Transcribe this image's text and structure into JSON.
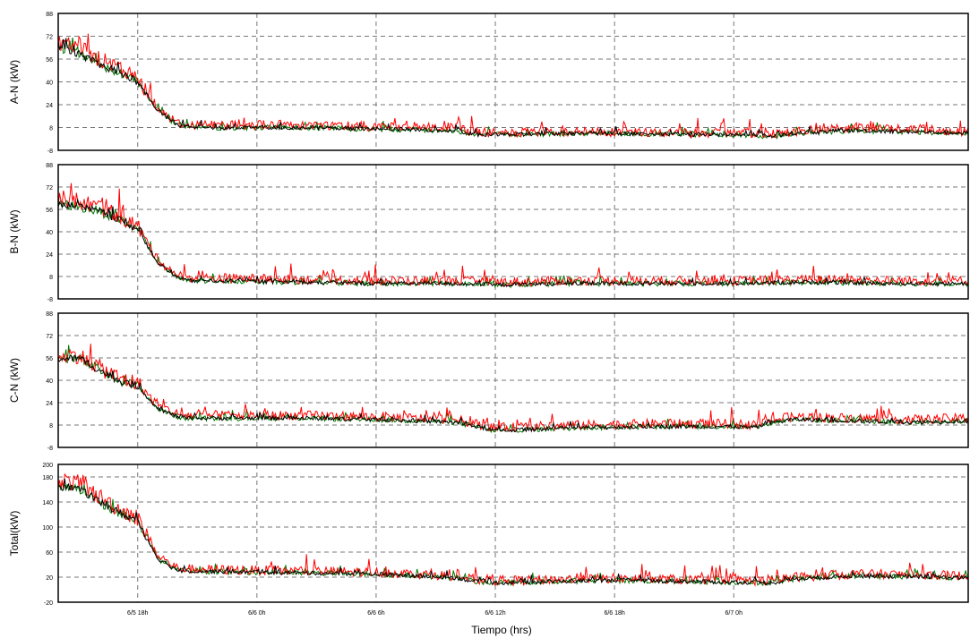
{
  "xlabel": "Tiempo (hrs)",
  "x_tick_labels": [
    "6/5 18h",
    "6/6 0h",
    "6/6 6h",
    "6/6 12h",
    "6/6 18h",
    "6/7 0h"
  ],
  "colors": {
    "series_a": "#ff0000",
    "series_b": "#000000",
    "series_c": "#007700",
    "grid": "#777777",
    "frame": "#000000"
  },
  "chart_data": [
    {
      "type": "line",
      "ylabel": "A-N (kW)",
      "ylim": [
        -8,
        88
      ],
      "yticks": [
        -8,
        8,
        24,
        40,
        56,
        72,
        88
      ],
      "ytick_labels": [
        "-8",
        "8",
        "24",
        "40",
        "56",
        "72",
        "88"
      ],
      "grid": true,
      "x_hours": [
        14,
        15,
        16,
        17,
        18,
        19,
        20,
        20.5,
        22,
        26,
        30,
        34,
        35,
        36,
        40,
        42,
        46,
        48,
        50,
        51,
        54,
        57,
        59.8
      ],
      "series": [
        {
          "values": [
            68,
            64,
            56,
            50,
            42,
            22,
            11,
            10,
            10,
            10,
            9,
            8,
            5,
            4,
            5,
            5,
            4,
            4,
            4,
            5,
            8,
            7,
            5
          ]
        },
        {
          "values": [
            64,
            60,
            53,
            47,
            40,
            20,
            10,
            9,
            8,
            8,
            7,
            6,
            3,
            3,
            4,
            4,
            3,
            3,
            2,
            4,
            6,
            5,
            4
          ]
        }
      ]
    },
    {
      "type": "line",
      "ylabel": "B-N (kW)",
      "ylim": [
        -8,
        88
      ],
      "yticks": [
        -8,
        8,
        24,
        40,
        56,
        72,
        88
      ],
      "ytick_labels": [
        "-8",
        "8",
        "24",
        "40",
        "56",
        "72",
        "88"
      ],
      "grid": true,
      "x_hours": [
        14,
        15,
        16,
        17,
        18,
        19,
        20,
        20.5,
        22,
        26,
        30,
        34,
        36,
        40,
        44,
        48,
        52,
        56,
        59.8
      ],
      "series": [
        {
          "values": [
            64,
            62,
            58,
            52,
            44,
            20,
            9,
            7,
            7,
            6,
            5,
            5,
            4,
            5,
            5,
            5,
            6,
            5,
            5
          ]
        },
        {
          "values": [
            60,
            58,
            55,
            49,
            42,
            18,
            7,
            5,
            5,
            4,
            3,
            3,
            2,
            3,
            3,
            3,
            4,
            3,
            3
          ]
        }
      ]
    },
    {
      "type": "line",
      "ylabel": "C-N (kW)",
      "ylim": [
        -8,
        88
      ],
      "yticks": [
        -8,
        8,
        24,
        40,
        56,
        72,
        88
      ],
      "ytick_labels": [
        "-8",
        "8",
        "24",
        "40",
        "56",
        "72",
        "88"
      ],
      "grid": true,
      "x_hours": [
        14,
        15,
        16,
        17,
        18,
        19,
        20,
        20.5,
        22,
        26,
        30,
        34,
        35,
        36,
        40,
        44,
        48,
        49,
        50,
        51,
        54,
        57,
        59.8
      ],
      "series": [
        {
          "values": [
            58,
            58,
            50,
            42,
            38,
            22,
            16,
            15,
            15,
            15,
            14,
            12,
            9,
            6,
            8,
            9,
            9,
            8,
            12,
            14,
            13,
            12,
            13
          ]
        },
        {
          "values": [
            55,
            56,
            48,
            40,
            36,
            20,
            14,
            13,
            13,
            13,
            12,
            10,
            7,
            4,
            6,
            7,
            7,
            6,
            10,
            12,
            11,
            10,
            11
          ]
        }
      ]
    },
    {
      "type": "line",
      "ylabel": "Total(kW)",
      "ylim": [
        -20,
        200
      ],
      "yticks": [
        -20,
        20,
        60,
        100,
        140,
        180,
        200
      ],
      "ytick_labels": [
        "-20",
        "20",
        "60",
        "100",
        "140",
        "180",
        "200"
      ],
      "grid": true,
      "x_hours": [
        14,
        15,
        16,
        17,
        18,
        19,
        20,
        20.5,
        22,
        26,
        30,
        34,
        35,
        36,
        40,
        42,
        46,
        48,
        50,
        51,
        54,
        57,
        59.8
      ],
      "series": [
        {
          "values": [
            175,
            170,
            150,
            130,
            115,
            55,
            34,
            33,
            32,
            30,
            28,
            22,
            16,
            14,
            17,
            18,
            16,
            15,
            14,
            20,
            25,
            24,
            22
          ]
        },
        {
          "values": [
            165,
            162,
            142,
            124,
            110,
            50,
            31,
            30,
            29,
            27,
            25,
            19,
            13,
            11,
            14,
            15,
            13,
            12,
            11,
            17,
            22,
            21,
            19
          ]
        }
      ]
    }
  ]
}
